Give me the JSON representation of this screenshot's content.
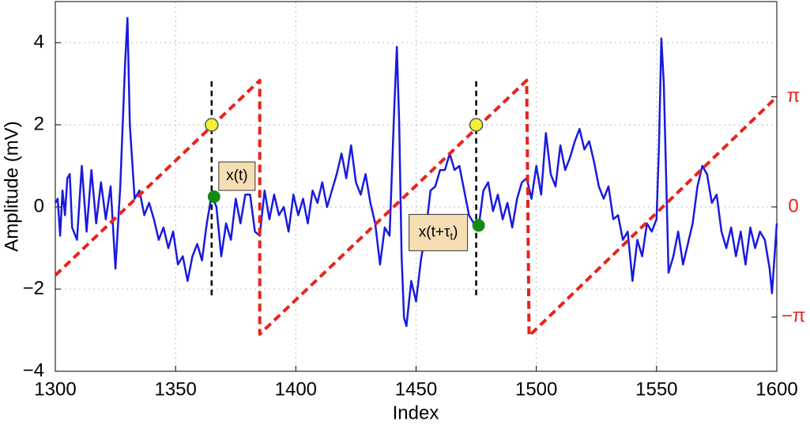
{
  "chart_data": {
    "type": "line",
    "xlabel": "Index",
    "ylabel": "Amplitude (mV)",
    "xlim": [
      1300,
      1600
    ],
    "xticks": [
      1300,
      1350,
      1400,
      1450,
      1500,
      1550,
      1600
    ],
    "ylim": [
      -4,
      5
    ],
    "yticks": [
      {
        "value": -4,
        "label": "−4"
      },
      {
        "value": -2,
        "label": "−2"
      },
      0,
      2,
      4
    ],
    "y2lim": [
      -4.69,
      5.86
    ],
    "y2ticks": [
      {
        "value": -3.1416,
        "label": "−π"
      },
      0,
      {
        "value": 3.1416,
        "label": "π"
      }
    ],
    "y2color": "#e8231c",
    "grid": true,
    "series": [
      {
        "color": "#1a1adf",
        "x": [
          1300,
          1301,
          1302,
          1303,
          1304,
          1305,
          1306,
          1307,
          1309,
          1311,
          1313,
          1315,
          1317,
          1319,
          1321,
          1323,
          1325,
          1327,
          1329,
          1330,
          1331,
          1333,
          1335,
          1337,
          1339,
          1341,
          1343,
          1345,
          1347,
          1349,
          1351,
          1353,
          1355,
          1357,
          1359,
          1361,
          1363,
          1365,
          1367,
          1369,
          1371,
          1373,
          1375,
          1377,
          1379,
          1381,
          1383,
          1385,
          1387,
          1389,
          1391,
          1393,
          1395,
          1397,
          1399,
          1401,
          1403,
          1405,
          1407,
          1409,
          1411,
          1413,
          1415,
          1417,
          1419,
          1421,
          1423,
          1425,
          1427,
          1429,
          1431,
          1433,
          1435,
          1437,
          1439,
          1441,
          1442,
          1443,
          1444,
          1445,
          1446,
          1448,
          1450,
          1452,
          1454,
          1456,
          1458,
          1460,
          1462,
          1464,
          1466,
          1468,
          1470,
          1472,
          1474,
          1476,
          1478,
          1480,
          1482,
          1484,
          1486,
          1488,
          1490,
          1492,
          1494,
          1496,
          1498,
          1500,
          1502,
          1504,
          1506,
          1508,
          1510,
          1512,
          1514,
          1516,
          1518,
          1520,
          1522,
          1524,
          1526,
          1528,
          1530,
          1532,
          1534,
          1536,
          1538,
          1540,
          1542,
          1544,
          1546,
          1548,
          1550,
          1551,
          1552,
          1553,
          1555,
          1557,
          1559,
          1561,
          1563,
          1565,
          1567,
          1569,
          1571,
          1573,
          1575,
          1577,
          1579,
          1581,
          1583,
          1585,
          1587,
          1589,
          1591,
          1593,
          1595,
          1597,
          1598,
          1600
        ],
        "values": [
          0.1,
          0.2,
          -0.7,
          0.4,
          -0.2,
          0.7,
          0.8,
          -0.5,
          -0.8,
          1.0,
          -0.6,
          0.9,
          -0.4,
          0.6,
          -0.3,
          0.5,
          -1.5,
          0.5,
          3.5,
          4.6,
          2.0,
          0.2,
          0.4,
          -0.2,
          0.1,
          -0.3,
          -0.8,
          -0.5,
          -1.0,
          -0.6,
          -1.4,
          -1.2,
          -1.8,
          -1.2,
          -0.9,
          -1.3,
          -0.4,
          0.3,
          0.0,
          -1.2,
          -0.4,
          -0.8,
          0.2,
          -0.4,
          0.3,
          0.3,
          -0.6,
          -0.7,
          0.4,
          -0.3,
          0.3,
          -0.2,
          0.0,
          -0.6,
          0.3,
          -0.2,
          0.2,
          -0.4,
          0.4,
          0.1,
          0.6,
          0.0,
          0.4,
          0.8,
          1.3,
          0.7,
          1.5,
          0.6,
          0.3,
          0.8,
          0.1,
          -0.4,
          -1.4,
          -0.5,
          -0.7,
          2.5,
          3.9,
          2.0,
          -1.2,
          -2.7,
          -2.9,
          -1.8,
          -2.3,
          -1.3,
          -0.6,
          0.4,
          0.5,
          0.9,
          0.9,
          1.3,
          0.9,
          1.0,
          0.4,
          -0.2,
          -0.4,
          -0.5,
          0.4,
          0.6,
          -0.1,
          0.3,
          -0.3,
          0.1,
          -0.5,
          0.2,
          0.6,
          0.7,
          0.2,
          1.0,
          0.3,
          1.8,
          0.8,
          0.5,
          1.5,
          0.9,
          1.2,
          1.6,
          1.9,
          1.4,
          1.6,
          1.1,
          0.5,
          0.2,
          0.5,
          -0.3,
          -0.2,
          -0.8,
          -0.6,
          -1.8,
          -0.8,
          -1.2,
          -0.4,
          -0.6,
          -0.3,
          1.5,
          4.1,
          3.0,
          -1.6,
          -1.2,
          -0.6,
          -1.4,
          -0.9,
          -0.4,
          0.5,
          1.0,
          0.8,
          0.1,
          0.3,
          -0.6,
          -1.0,
          -0.5,
          -1.2,
          -0.6,
          -1.4,
          -0.5,
          -1.0,
          -0.6,
          -0.8,
          -1.5,
          -2.1,
          -0.4
        ]
      },
      {
        "color": "#e8231c",
        "axis": "y2",
        "dashed": true,
        "x": [
          1300,
          1385,
          1385,
          1496,
          1497,
          1600
        ],
        "values": [
          -1.95,
          3.61,
          -3.63,
          3.61,
          -3.68,
          3.1416
        ]
      }
    ],
    "vlines": [
      {
        "x": 1365,
        "y": [
          -2.15,
          3.09
        ]
      },
      {
        "x": 1475,
        "y": [
          -2.15,
          3.09
        ]
      }
    ],
    "markers": [
      {
        "x": 1365,
        "y": 2,
        "color": "#f5f033"
      },
      {
        "x": 1475,
        "y": 2,
        "color": "#f5f033"
      },
      {
        "x": 1366,
        "y": 0.25,
        "color": "#168a16",
        "label": "x(t)"
      },
      {
        "x": 1476,
        "y": -0.45,
        "color": "#168a16",
        "label": "x(t+τ",
        "label_sub": "t",
        "label_end": ")"
      }
    ]
  }
}
